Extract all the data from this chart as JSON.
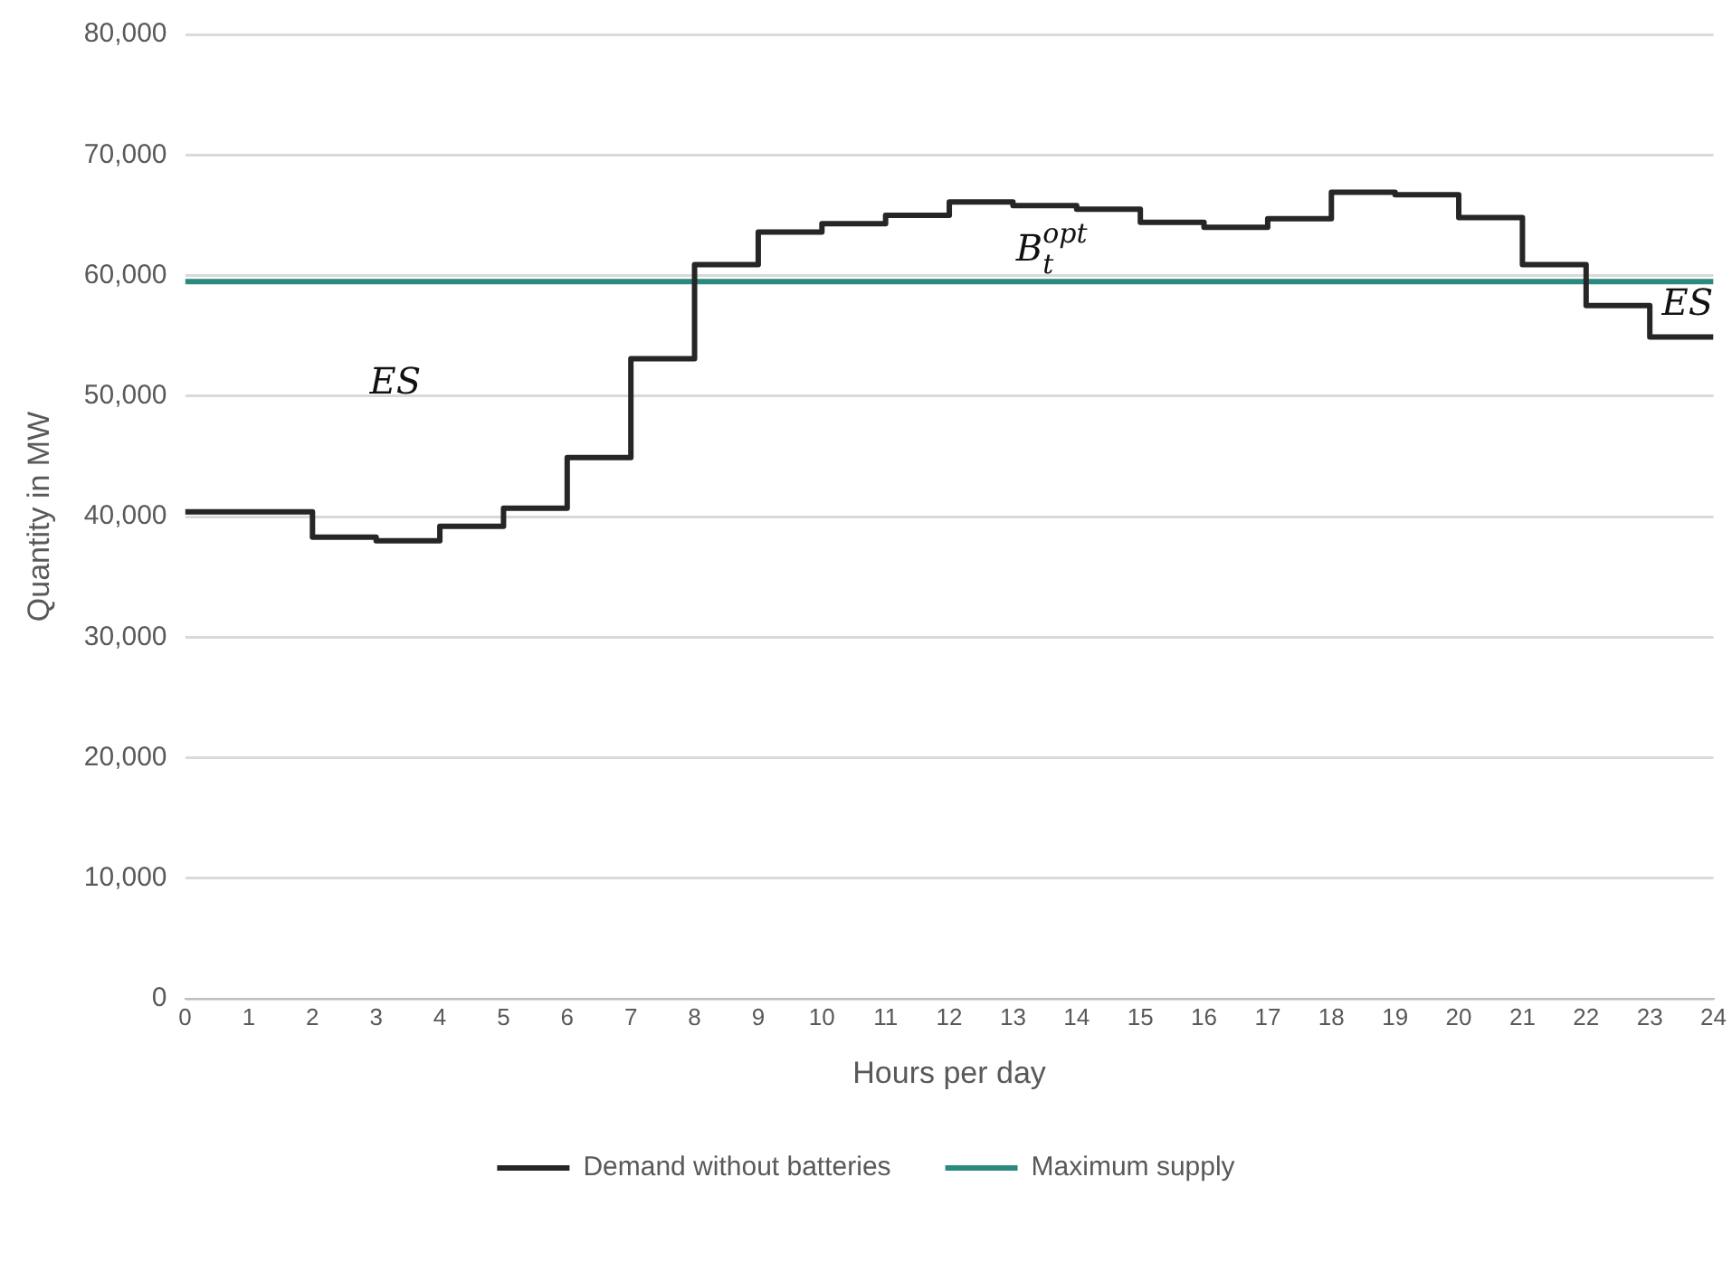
{
  "chart_data": {
    "type": "step",
    "xlabel": "Hours per day",
    "ylabel": "Quantity in MW",
    "x": [
      0,
      1,
      2,
      3,
      4,
      5,
      6,
      7,
      8,
      9,
      10,
      11,
      12,
      13,
      14,
      15,
      16,
      17,
      18,
      19,
      20,
      21,
      22,
      23,
      24
    ],
    "series": [
      {
        "name": "Demand without batteries",
        "color": "#262626",
        "values": [
          40400,
          40400,
          38300,
          38000,
          39200,
          40700,
          44900,
          53100,
          60900,
          63600,
          64300,
          65000,
          66100,
          65800,
          65500,
          64400,
          64000,
          64700,
          66900,
          66700,
          64800,
          60900,
          57500,
          54900,
          54900
        ]
      },
      {
        "name": "Maximum supply",
        "color": "#2a8a80",
        "x": [
          0,
          24
        ],
        "values": [
          59500,
          59500
        ]
      }
    ],
    "xlim": [
      0,
      24
    ],
    "xticks": [
      0,
      1,
      2,
      3,
      4,
      5,
      6,
      7,
      8,
      9,
      10,
      11,
      12,
      13,
      14,
      15,
      16,
      17,
      18,
      19,
      20,
      21,
      22,
      23,
      24
    ],
    "ylim": [
      0,
      80000
    ],
    "yticks": [
      0,
      {
        "value": 10000,
        "label": "10,000"
      },
      {
        "value": 20000,
        "label": "20,000"
      },
      {
        "value": 30000,
        "label": "30,000"
      },
      {
        "value": 40000,
        "label": "40,000"
      },
      {
        "value": 50000,
        "label": "50,000"
      },
      {
        "value": 60000,
        "label": "60,000"
      },
      {
        "value": 70000,
        "label": "70,000"
      },
      {
        "value": 80000,
        "label": "80,000"
      }
    ],
    "grid": "y",
    "legend": "bottom",
    "marker": "none",
    "line_style": "solid",
    "annotations": [
      "ES",
      "B$_{t}$$^{opt}$",
      "ES"
    ]
  }
}
